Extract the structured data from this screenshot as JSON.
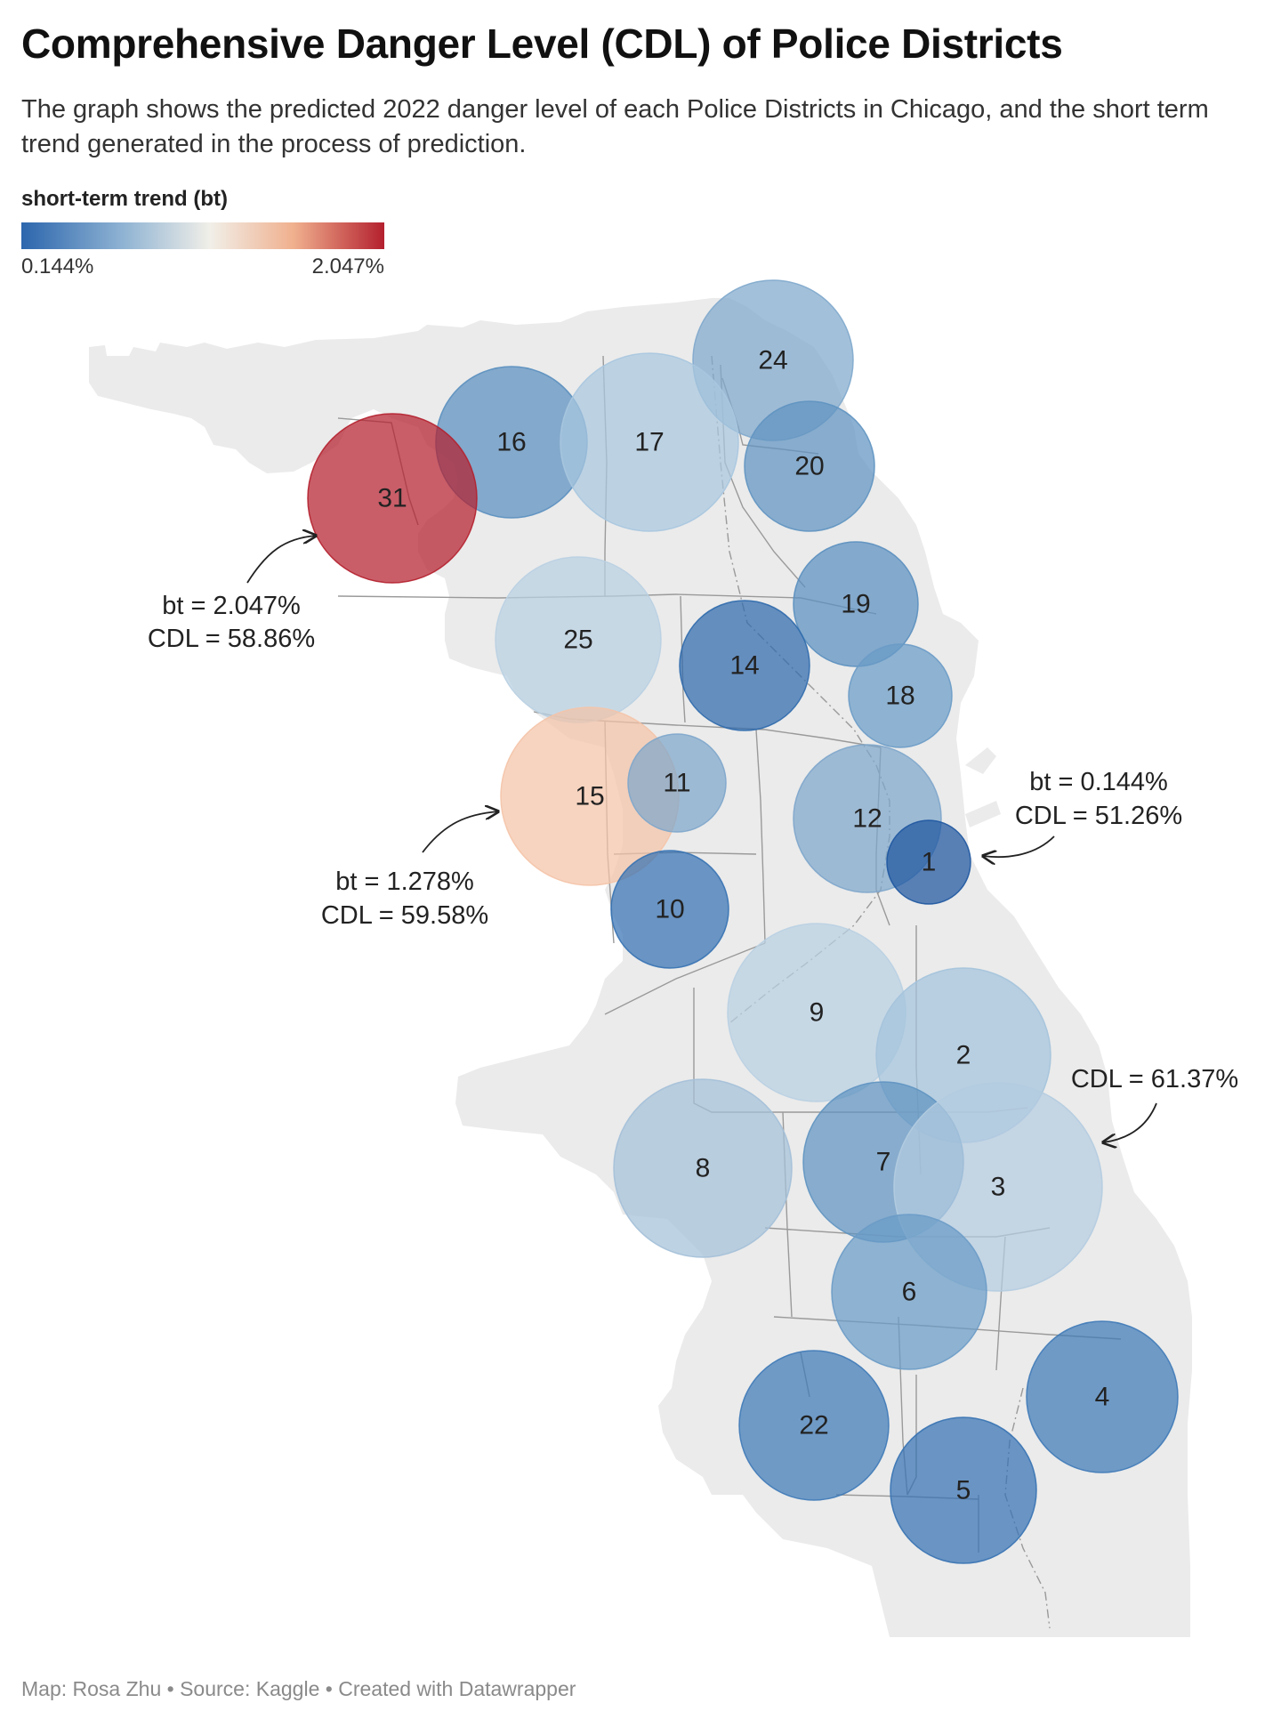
{
  "header": {
    "title": "Comprehensive Danger Level (CDL) of Police Districts",
    "subtitle": "The graph shows the predicted 2022 danger level of each Police Districts in Chicago, and the short term trend generated in the process of prediction."
  },
  "legend": {
    "title": "short-term trend (bt)",
    "min_label": "0.144%",
    "max_label": "2.047%",
    "min_value": 0.144,
    "max_value": 2.047,
    "colors": [
      "#2c66ad",
      "#8fb3d3",
      "#f1efe8",
      "#f0b08e",
      "#b4202e"
    ]
  },
  "annotations": [
    {
      "id": "a31",
      "lines": [
        "bt = 2.047%",
        "CDL = 58.86%"
      ]
    },
    {
      "id": "a15",
      "lines": [
        "bt = 1.278%",
        "CDL =  59.58%"
      ]
    },
    {
      "id": "a1",
      "lines": [
        "bt = 0.144%",
        "CDL =  51.26%"
      ]
    },
    {
      "id": "a3",
      "lines": [
        "CDL = 61.37%"
      ]
    }
  ],
  "districts": [
    {
      "district": "24",
      "color": "#7fa8cc"
    },
    {
      "district": "16",
      "color": "#5a8fbf"
    },
    {
      "district": "17",
      "color": "#a9c7df"
    },
    {
      "district": "20",
      "color": "#5f93c1"
    },
    {
      "district": "31",
      "color": "#b4202e"
    },
    {
      "district": "19",
      "color": "#5a8fbf"
    },
    {
      "district": "25",
      "color": "#b9d0e2"
    },
    {
      "district": "14",
      "color": "#2f6aac"
    },
    {
      "district": "18",
      "color": "#6a9bc6"
    },
    {
      "district": "15",
      "color": "#f4c4a8"
    },
    {
      "district": "11",
      "color": "#7ea6cb"
    },
    {
      "district": "12",
      "color": "#7ea6cb"
    },
    {
      "district": "1",
      "color": "#1e56a0"
    },
    {
      "district": "10",
      "color": "#3672b3"
    },
    {
      "district": "9",
      "color": "#b9d0e2"
    },
    {
      "district": "2",
      "color": "#a4c3dc"
    },
    {
      "district": "8",
      "color": "#a4c0d8"
    },
    {
      "district": "7",
      "color": "#5f93c1"
    },
    {
      "district": "3",
      "color": "#b4cce0"
    },
    {
      "district": "6",
      "color": "#6a9bc6"
    },
    {
      "district": "4",
      "color": "#3f7ab7"
    },
    {
      "district": "22",
      "color": "#3f7ab7"
    },
    {
      "district": "5",
      "color": "#3672b3"
    }
  ],
  "footer": {
    "map": "Map: Rosa Zhu",
    "separator": " • ",
    "source": "Source: Kaggle",
    "created": "Created with Datawrapper"
  }
}
